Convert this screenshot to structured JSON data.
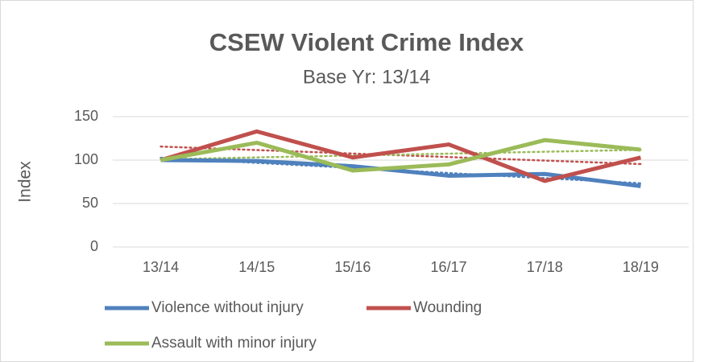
{
  "chart_data": {
    "type": "line",
    "title": "CSEW Violent Crime Index",
    "subtitle": "Base Yr: 13/14",
    "y_label": "Index",
    "categories": [
      "13/14",
      "14/15",
      "15/16",
      "16/17",
      "17/18",
      "18/19"
    ],
    "series": [
      {
        "name": "Violence without injury",
        "color": "#4f81bd",
        "values": [
          100,
          99,
          93,
          82,
          84,
          70
        ]
      },
      {
        "name": "Wounding",
        "color": "#c0504d",
        "values": [
          100,
          133,
          103,
          118,
          76,
          103
        ]
      },
      {
        "name": "Assault with minor injury",
        "color": "#9bbb59",
        "values": [
          100,
          120,
          88,
          95,
          123,
          112
        ]
      }
    ],
    "ylim": [
      0,
      150
    ],
    "yticks": [
      0,
      50,
      100,
      150
    ],
    "grid": true,
    "trendline": true
  }
}
